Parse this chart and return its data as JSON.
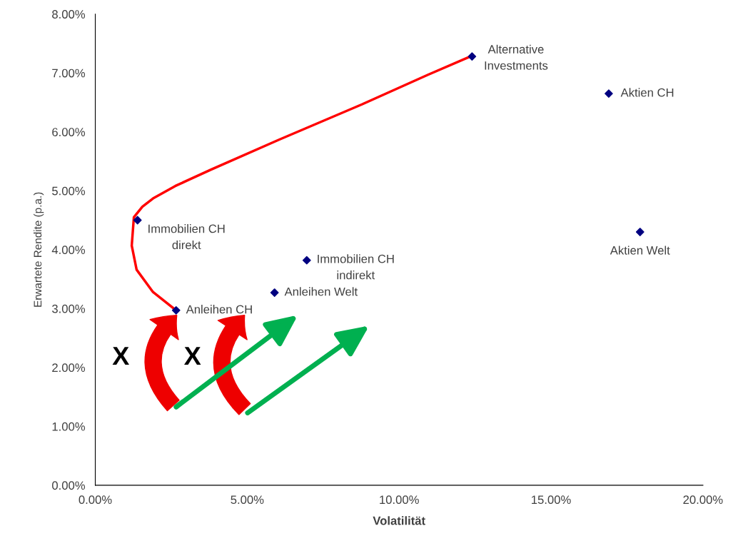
{
  "chart_data": {
    "type": "scatter",
    "xlabel": "Volatilität",
    "ylabel": "Erwartete Rendite (p.a.)",
    "xlim": [
      0,
      20
    ],
    "ylim": [
      0,
      8
    ],
    "xticks": [
      {
        "value": 0,
        "label": "0.00%"
      },
      {
        "value": 5,
        "label": "5.00%"
      },
      {
        "value": 10,
        "label": "10.00%"
      },
      {
        "value": 15,
        "label": "15.00%"
      },
      {
        "value": 20,
        "label": "20.00%"
      }
    ],
    "yticks": [
      {
        "value": 0,
        "label": "0.00%"
      },
      {
        "value": 1,
        "label": "1.00%"
      },
      {
        "value": 2,
        "label": "2.00%"
      },
      {
        "value": 3,
        "label": "3.00%"
      },
      {
        "value": 4,
        "label": "4.00%"
      },
      {
        "value": 5,
        "label": "5.00%"
      },
      {
        "value": 6,
        "label": "6.00%"
      },
      {
        "value": 7,
        "label": "7.00%"
      },
      {
        "value": 8,
        "label": "8.00%"
      }
    ],
    "grid": false,
    "legend": false,
    "series": [
      {
        "type": "line",
        "color": "#ff0000",
        "marker": "none",
        "line_style": "solid",
        "x": [
          2.66,
          1.9,
          1.36,
          1.2,
          1.27,
          1.55,
          1.9,
          2.63,
          3.81,
          6.06,
          8.79,
          10.95,
          12.43
        ],
        "values": [
          2.97,
          3.28,
          3.66,
          4.07,
          4.55,
          4.73,
          4.87,
          5.08,
          5.36,
          5.87,
          6.47,
          6.97,
          7.3
        ]
      },
      {
        "color": "#000080",
        "marker": "diamond",
        "x": [
          12.4,
          16.9,
          1.39,
          6.96,
          5.9,
          2.66,
          17.93
        ],
        "values": [
          7.28,
          6.65,
          4.5,
          3.82,
          3.27,
          2.97,
          4.3
        ]
      }
    ],
    "annotations": [
      {
        "text": "Alternative\nInvestments",
        "x": 12.4,
        "y": 7.28
      },
      {
        "text": "Aktien CH",
        "x": 16.9,
        "y": 6.65
      },
      {
        "text": "Immobilien CH\ndirekt",
        "x": 1.39,
        "y": 4.5
      },
      {
        "text": "Immobilien CH\nindirekt",
        "x": 6.96,
        "y": 3.82
      },
      {
        "text": "Anleihen Welt",
        "x": 5.9,
        "y": 3.27
      },
      {
        "text": "Anleihen CH",
        "x": 2.66,
        "y": 2.97
      },
      {
        "text": "Aktien Welt",
        "x": 17.93,
        "y": 4.3
      },
      "X",
      "X"
    ]
  }
}
